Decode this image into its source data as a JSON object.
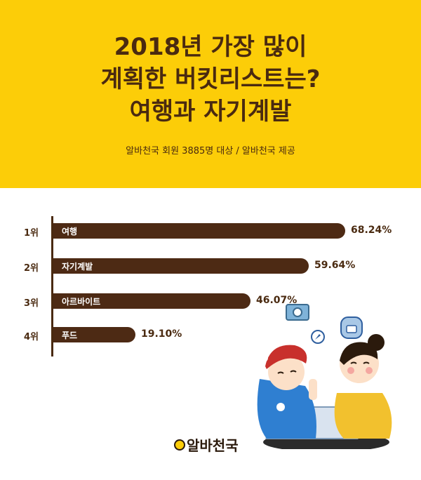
{
  "header": {
    "title_lines": [
      "2018년 가장 많이",
      "계획한 버킷리스트는?",
      "여행과 자기계발"
    ],
    "subtitle": "알바천국 회원 3885명 대상 / 알바천국 제공",
    "bg_color": "#fccd08",
    "text_color": "#4a2a10"
  },
  "chart_data": {
    "type": "bar",
    "orientation": "horizontal",
    "ranks": [
      "1위",
      "2위",
      "3위",
      "4위"
    ],
    "categories": [
      "여행",
      "자기계발",
      "아르바이트",
      "푸드"
    ],
    "values": [
      68.24,
      59.64,
      46.07,
      19.1
    ],
    "value_labels": [
      "68.24%",
      "59.64%",
      "46.07%",
      "19.10%"
    ],
    "xlim": [
      0,
      100
    ],
    "bar_color": "#4d2a14"
  },
  "logo": {
    "text": "알바천국"
  },
  "icons": [
    "camera-icon",
    "compass-icon",
    "backpack-icon",
    "bee-icon"
  ]
}
